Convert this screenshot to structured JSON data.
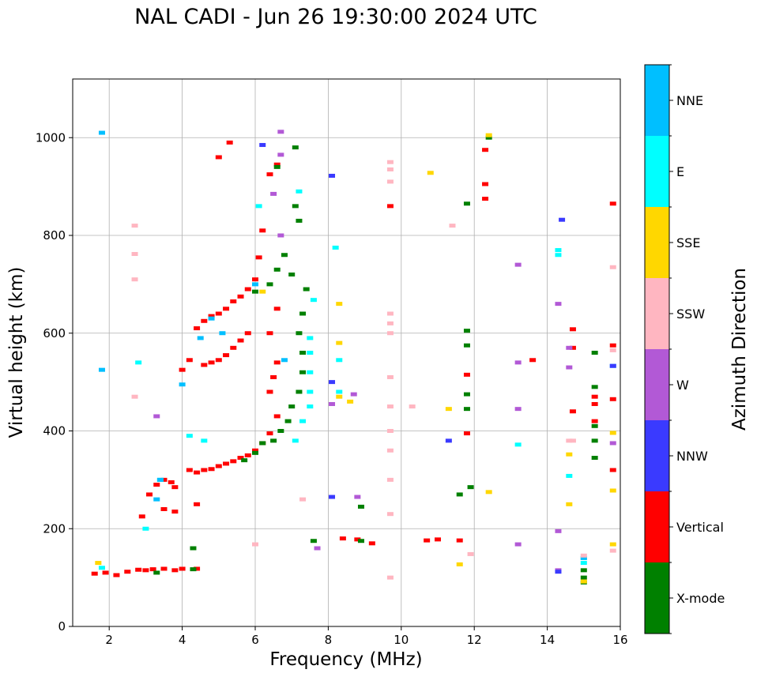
{
  "chart_data": {
    "type": "scatter",
    "title": "NAL CADI - Jun 26 19:30:00 2024 UTC",
    "xlabel": "Frequency (MHz)",
    "ylabel": "Virtual height (km)",
    "xlim": [
      1,
      16
    ],
    "ylim": [
      0,
      1120
    ],
    "xticks": [
      2,
      4,
      6,
      8,
      10,
      12,
      14,
      16
    ],
    "yticks": [
      0,
      200,
      400,
      600,
      800,
      1000
    ],
    "grid": true,
    "colorbar": {
      "label": "Azimuth Direction",
      "categories": [
        {
          "name": "X-mode",
          "color": "#008000"
        },
        {
          "name": "Vertical",
          "color": "#ff0000"
        },
        {
          "name": "NNW",
          "color": "#3a3aff"
        },
        {
          "name": "W",
          "color": "#b259d6"
        },
        {
          "name": "SSW",
          "color": "#ffb6c1"
        },
        {
          "name": "SSE",
          "color": "#ffd700"
        },
        {
          "name": "E",
          "color": "#00ffff"
        },
        {
          "name": "NNE",
          "color": "#00bfff"
        }
      ]
    },
    "series": [
      {
        "name": "Vertical",
        "color": "#ff0000",
        "points": [
          [
            1.6,
            108
          ],
          [
            1.9,
            110
          ],
          [
            2.2,
            105
          ],
          [
            2.5,
            112
          ],
          [
            2.8,
            116
          ],
          [
            3.0,
            115
          ],
          [
            3.2,
            117
          ],
          [
            3.5,
            118
          ],
          [
            3.8,
            115
          ],
          [
            4.0,
            118
          ],
          [
            4.4,
            118
          ],
          [
            2.9,
            225
          ],
          [
            3.1,
            270
          ],
          [
            3.3,
            290
          ],
          [
            3.5,
            300
          ],
          [
            3.7,
            295
          ],
          [
            3.8,
            285
          ],
          [
            3.5,
            240
          ],
          [
            3.8,
            235
          ],
          [
            4.4,
            250
          ],
          [
            4.2,
            320
          ],
          [
            4.4,
            315
          ],
          [
            4.6,
            320
          ],
          [
            4.8,
            322
          ],
          [
            5.0,
            328
          ],
          [
            5.2,
            333
          ],
          [
            5.4,
            338
          ],
          [
            5.6,
            345
          ],
          [
            5.8,
            350
          ],
          [
            6.0,
            360
          ],
          [
            6.2,
            375
          ],
          [
            6.4,
            395
          ],
          [
            6.6,
            430
          ],
          [
            4.0,
            525
          ],
          [
            4.2,
            545
          ],
          [
            4.6,
            535
          ],
          [
            4.8,
            540
          ],
          [
            5.0,
            545
          ],
          [
            5.2,
            555
          ],
          [
            5.4,
            570
          ],
          [
            5.6,
            585
          ],
          [
            5.8,
            600
          ],
          [
            4.4,
            610
          ],
          [
            4.6,
            625
          ],
          [
            4.8,
            635
          ],
          [
            5.0,
            640
          ],
          [
            5.2,
            650
          ],
          [
            5.4,
            665
          ],
          [
            5.6,
            675
          ],
          [
            5.8,
            690
          ],
          [
            6.0,
            710
          ],
          [
            6.1,
            755
          ],
          [
            6.2,
            810
          ],
          [
            6.4,
            480
          ],
          [
            6.5,
            510
          ],
          [
            6.6,
            540
          ],
          [
            6.4,
            600
          ],
          [
            6.6,
            650
          ],
          [
            6.4,
            925
          ],
          [
            6.6,
            945
          ],
          [
            5.0,
            960
          ],
          [
            5.3,
            990
          ],
          [
            8.4,
            180
          ],
          [
            8.8,
            178
          ],
          [
            9.2,
            170
          ],
          [
            10.7,
            176
          ],
          [
            11.0,
            178
          ],
          [
            11.6,
            176
          ],
          [
            12.3,
            875
          ],
          [
            12.3,
            905
          ],
          [
            12.3,
            975
          ],
          [
            11.8,
            515
          ],
          [
            11.8,
            395
          ],
          [
            13.6,
            545
          ],
          [
            14.7,
            608
          ],
          [
            14.7,
            570
          ],
          [
            14.7,
            440
          ],
          [
            15.3,
            455
          ],
          [
            15.3,
            470
          ],
          [
            15.3,
            420
          ],
          [
            15.8,
            865
          ],
          [
            15.8,
            575
          ],
          [
            15.8,
            465
          ],
          [
            15.8,
            320
          ],
          [
            9.7,
            860
          ]
        ]
      },
      {
        "name": "X-mode",
        "color": "#008000",
        "points": [
          [
            3.3,
            110
          ],
          [
            4.3,
            117
          ],
          [
            4.3,
            160
          ],
          [
            5.7,
            340
          ],
          [
            6.0,
            355
          ],
          [
            6.2,
            375
          ],
          [
            6.5,
            380
          ],
          [
            6.7,
            400
          ],
          [
            6.9,
            420
          ],
          [
            7.0,
            450
          ],
          [
            7.2,
            480
          ],
          [
            7.3,
            520
          ],
          [
            7.3,
            560
          ],
          [
            7.2,
            600
          ],
          [
            7.3,
            640
          ],
          [
            7.4,
            690
          ],
          [
            7.0,
            720
          ],
          [
            6.8,
            760
          ],
          [
            6.6,
            730
          ],
          [
            6.4,
            700
          ],
          [
            6.0,
            685
          ],
          [
            7.2,
            830
          ],
          [
            7.1,
            860
          ],
          [
            7.1,
            980
          ],
          [
            6.6,
            940
          ],
          [
            7.6,
            175
          ],
          [
            8.9,
            175
          ],
          [
            8.9,
            245
          ],
          [
            11.8,
            605
          ],
          [
            11.8,
            575
          ],
          [
            11.8,
            475
          ],
          [
            11.8,
            445
          ],
          [
            11.8,
            865
          ],
          [
            11.6,
            270
          ],
          [
            11.9,
            285
          ],
          [
            12.4,
            1000
          ],
          [
            15.0,
            115
          ],
          [
            15.0,
            100
          ],
          [
            15.0,
            90
          ],
          [
            15.3,
            560
          ],
          [
            15.3,
            345
          ],
          [
            15.3,
            380
          ],
          [
            15.3,
            410
          ],
          [
            15.3,
            490
          ]
        ]
      },
      {
        "name": "E",
        "color": "#00ffff",
        "points": [
          [
            1.8,
            120
          ],
          [
            3.0,
            200
          ],
          [
            3.4,
            300
          ],
          [
            4.2,
            390
          ],
          [
            4.6,
            380
          ],
          [
            7.1,
            380
          ],
          [
            7.3,
            420
          ],
          [
            7.5,
            450
          ],
          [
            7.5,
            480
          ],
          [
            7.5,
            520
          ],
          [
            7.5,
            560
          ],
          [
            7.5,
            590
          ],
          [
            7.2,
            890
          ],
          [
            8.2,
            775
          ],
          [
            8.3,
            545
          ],
          [
            8.3,
            480
          ],
          [
            14.3,
            770
          ],
          [
            14.3,
            760
          ],
          [
            14.6,
            308
          ],
          [
            15.0,
            140
          ],
          [
            15.0,
            130
          ],
          [
            13.2,
            372
          ],
          [
            7.6,
            668
          ],
          [
            6.1,
            860
          ],
          [
            2.8,
            540
          ]
        ]
      },
      {
        "name": "NNE",
        "color": "#00bfff",
        "points": [
          [
            1.8,
            1010
          ],
          [
            1.8,
            525
          ],
          [
            3.3,
            260
          ],
          [
            3.4,
            300
          ],
          [
            4.0,
            495
          ],
          [
            4.5,
            590
          ],
          [
            4.8,
            630
          ],
          [
            5.1,
            600
          ],
          [
            6.0,
            700
          ],
          [
            6.8,
            545
          ],
          [
            15.8,
            533
          ],
          [
            15.0,
            140
          ]
        ]
      },
      {
        "name": "W",
        "color": "#b259d6",
        "points": [
          [
            3.3,
            430
          ],
          [
            6.7,
            1012
          ],
          [
            6.7,
            965
          ],
          [
            6.5,
            885
          ],
          [
            6.7,
            800
          ],
          [
            8.1,
            455
          ],
          [
            8.7,
            475
          ],
          [
            8.8,
            265
          ],
          [
            13.2,
            740
          ],
          [
            13.2,
            540
          ],
          [
            13.2,
            445
          ],
          [
            14.3,
            660
          ],
          [
            14.3,
            195
          ],
          [
            14.6,
            530
          ],
          [
            14.6,
            570
          ],
          [
            7.7,
            160
          ],
          [
            13.2,
            168
          ],
          [
            15.8,
            375
          ],
          [
            14.3,
            115
          ]
        ]
      },
      {
        "name": "NNW",
        "color": "#3a3aff",
        "points": [
          [
            6.2,
            985
          ],
          [
            8.1,
            922
          ],
          [
            8.1,
            500
          ],
          [
            14.4,
            832
          ],
          [
            14.3,
            112
          ],
          [
            11.3,
            380
          ],
          [
            15.8,
            533
          ],
          [
            8.1,
            265
          ]
        ]
      },
      {
        "name": "SSE",
        "color": "#ffd700",
        "points": [
          [
            1.7,
            130
          ],
          [
            8.3,
            660
          ],
          [
            8.3,
            580
          ],
          [
            8.3,
            470
          ],
          [
            8.6,
            460
          ],
          [
            10.8,
            928
          ],
          [
            12.4,
            1005
          ],
          [
            12.4,
            275
          ],
          [
            14.6,
            250
          ],
          [
            14.6,
            352
          ],
          [
            15.0,
            92
          ],
          [
            15.8,
            278
          ],
          [
            15.8,
            396
          ],
          [
            15.8,
            168
          ],
          [
            11.3,
            445
          ],
          [
            11.6,
            127
          ],
          [
            6.2,
            685
          ]
        ]
      },
      {
        "name": "SSW",
        "color": "#ffb6c1",
        "points": [
          [
            2.7,
            820
          ],
          [
            2.7,
            762
          ],
          [
            2.7,
            710
          ],
          [
            2.7,
            470
          ],
          [
            9.7,
            950
          ],
          [
            9.7,
            935
          ],
          [
            9.7,
            910
          ],
          [
            9.7,
            640
          ],
          [
            9.7,
            620
          ],
          [
            9.7,
            600
          ],
          [
            9.7,
            510
          ],
          [
            9.7,
            450
          ],
          [
            9.7,
            400
          ],
          [
            9.7,
            360
          ],
          [
            9.7,
            300
          ],
          [
            9.7,
            230
          ],
          [
            9.7,
            100
          ],
          [
            10.3,
            450
          ],
          [
            11.4,
            820
          ],
          [
            14.6,
            380
          ],
          [
            15.0,
            145
          ],
          [
            15.8,
            735
          ],
          [
            15.8,
            565
          ],
          [
            15.8,
            155
          ],
          [
            7.3,
            260
          ],
          [
            6.0,
            168
          ],
          [
            11.9,
            148
          ],
          [
            14.7,
            380
          ]
        ]
      }
    ]
  }
}
